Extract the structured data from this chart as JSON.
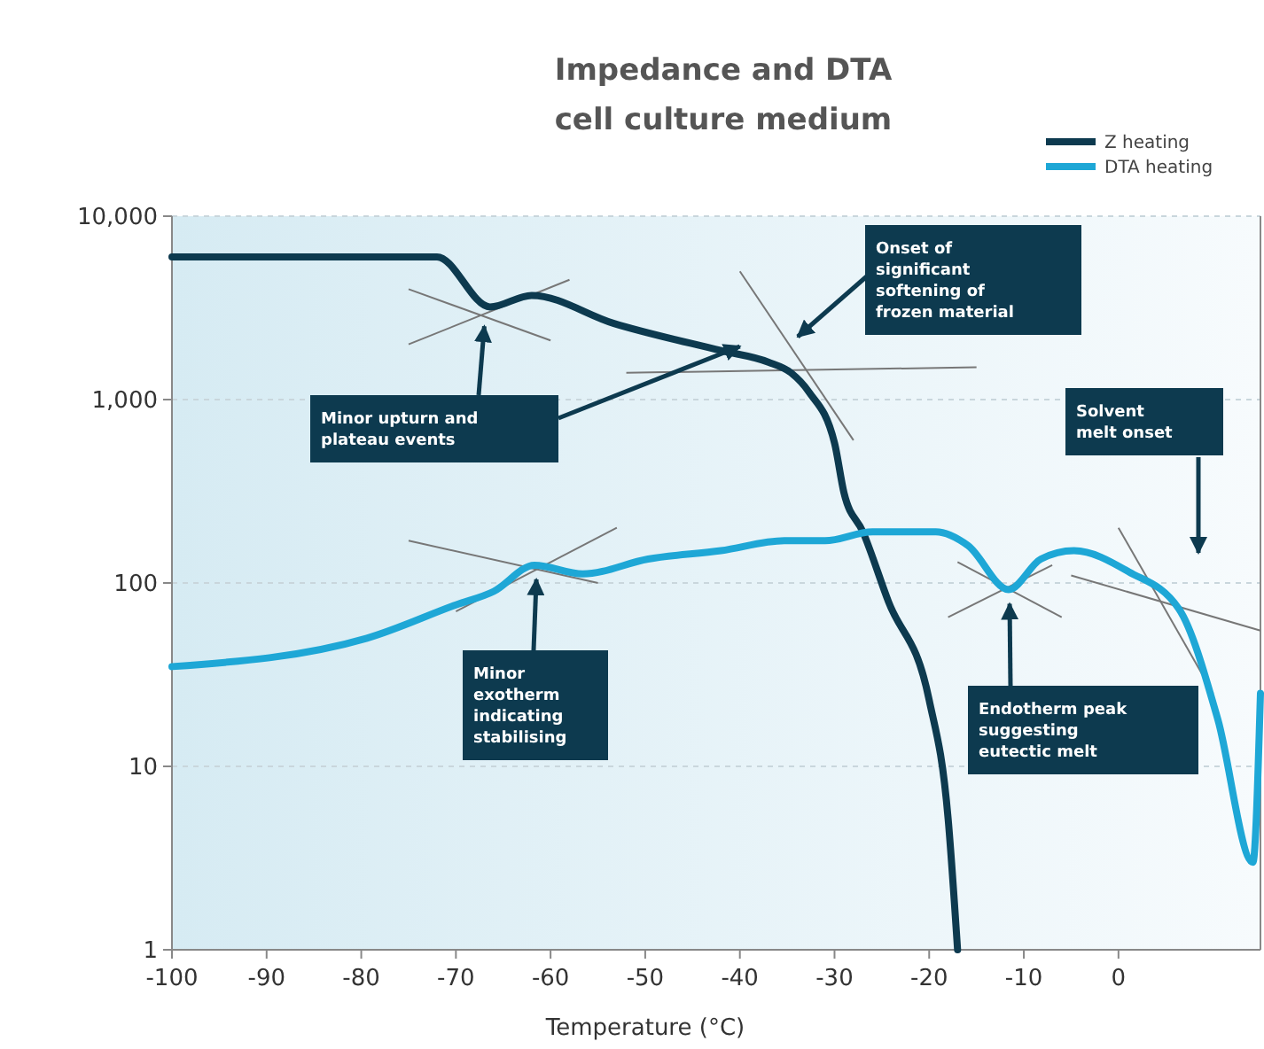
{
  "chart_data": {
    "type": "line",
    "title": "Impedance and DTA\ncell culture medium",
    "xlabel": "Temperature (°C)",
    "xlim": [
      -100,
      15
    ],
    "xticks": [
      -100,
      -90,
      -80,
      -70,
      -60,
      -50,
      -40,
      -30,
      -20,
      -10,
      0
    ],
    "ylim": [
      1,
      10000
    ],
    "yticks": [
      1,
      10,
      100,
      {
        "value": 1000,
        "label": "1,000"
      },
      {
        "value": 10000,
        "label": "10,000"
      }
    ],
    "log": "y",
    "grid": "y",
    "legend": "top right",
    "line_style": "solid",
    "marker": "none",
    "series": [
      {
        "name": "Z heating",
        "color": "#0d3a4f",
        "x": [
          -100,
          -72,
          -66.4,
          -62,
          -53.3,
          -42,
          -37,
          -34.6,
          -32.7,
          -30,
          -29,
          -27,
          -24.3,
          -20,
          -18,
          -17
        ],
        "values": [
          6000,
          6000,
          3200,
          3700,
          2600,
          1850,
          1600,
          1400,
          1100,
          580,
          310,
          190,
          79,
          23,
          5.2,
          1
        ]
      },
      {
        "name": "DTA heating",
        "color": "#1ea7d6",
        "x": [
          -100,
          -79.4,
          -70,
          -66,
          -61.7,
          -56.6,
          -49.7,
          -42,
          -35.3,
          -31,
          -26,
          -19.3,
          -15.9,
          -11.6,
          -8.2,
          -4.7,
          1.1,
          6.4,
          10.5,
          14.2,
          15
        ],
        "values": [
          35,
          50,
          76,
          90,
          125,
          112,
          135,
          150,
          170,
          170,
          190,
          190,
          160,
          92,
          135,
          150,
          115,
          72,
          18,
          3,
          25
        ]
      }
    ],
    "annotations": [
      {
        "text": "Minor upturn and plateau events",
        "x": -67,
        "y": 3000
      },
      "Onset of significant softening of frozen material",
      "Solvent melt onset",
      {
        "text": "Minor exotherm indicating stabilising",
        "x": -61.5,
        "y": 125
      },
      {
        "text": "Endotherm peak suggesting eutectic melt",
        "x": -11.5,
        "y": 92
      }
    ]
  }
}
